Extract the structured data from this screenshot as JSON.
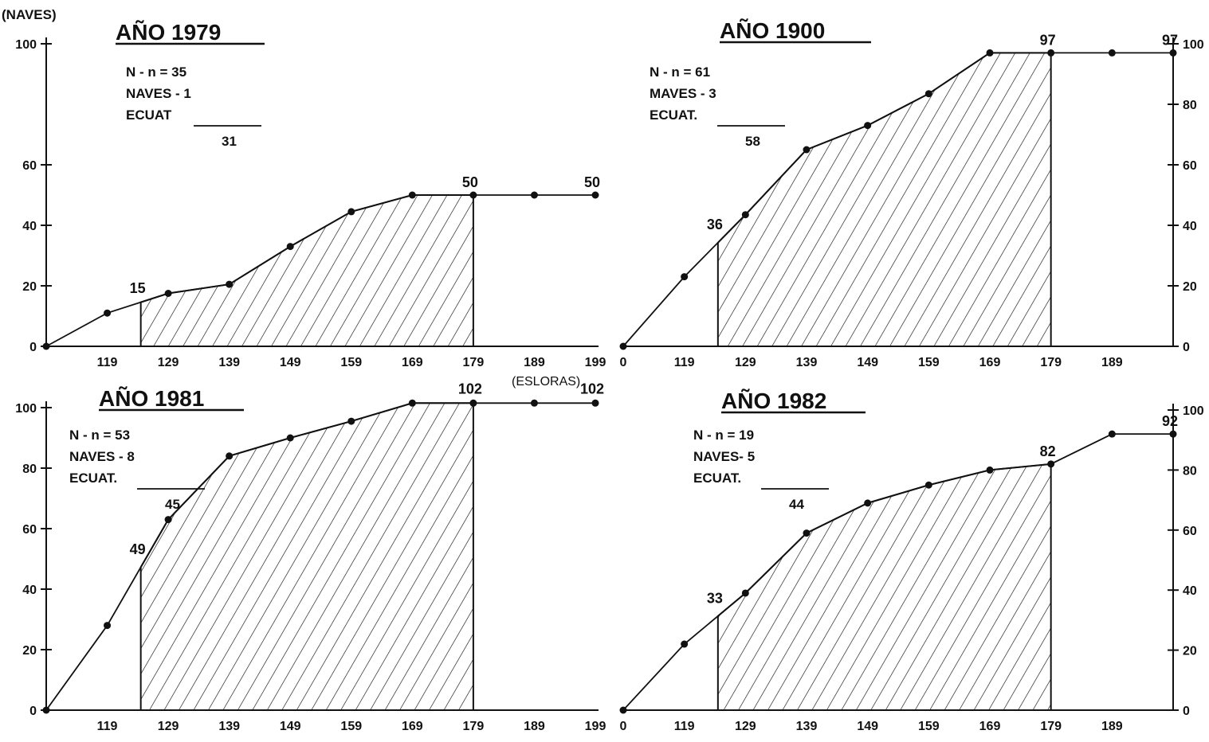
{
  "figure": {
    "y_unit": "(NAVES)",
    "x_unit": "(ESLORAS)",
    "x_ticks": [
      "119",
      "129",
      "139",
      "149",
      "159",
      "169",
      "179",
      "189",
      "199"
    ]
  },
  "chart_data": [
    {
      "type": "line",
      "title": "AÑO 1979",
      "legend_lines": [
        "N - n = 35",
        "NAVES - 1",
        "ECUAT",
        "31"
      ],
      "x_tick_labels": [
        "119",
        "129",
        "139",
        "149",
        "159",
        "169",
        "179",
        "189",
        "199"
      ],
      "y_ticks": [
        0,
        20,
        40,
        60,
        100
      ],
      "y_axis_side": "left",
      "ylim": [
        0,
        100
      ],
      "points": [
        [
          109,
          0
        ],
        [
          119,
          11
        ],
        [
          129,
          17.5
        ],
        [
          139,
          20.5
        ],
        [
          149,
          33
        ],
        [
          159,
          44.5
        ],
        [
          169,
          50
        ],
        [
          179,
          50
        ],
        [
          189,
          50
        ],
        [
          199,
          50
        ]
      ],
      "shaded_from_x": 124.5,
      "shaded_to_x": 179,
      "annotations": [
        {
          "text": "15",
          "x": 124.5,
          "y": 15
        },
        {
          "text": "50",
          "x": 179,
          "y": 50
        },
        {
          "text": "50",
          "x": 199,
          "y": 50
        }
      ]
    },
    {
      "type": "line",
      "title": "AÑO 1900",
      "legend_lines": [
        "N - n = 61",
        "MAVES - 3",
        "ECUAT.",
        "58"
      ],
      "x_tick_labels": [
        "0",
        "119",
        "129",
        "139",
        "149",
        "159",
        "169",
        "179",
        "189"
      ],
      "y_ticks": [
        0,
        20,
        40,
        60,
        80,
        100
      ],
      "y_axis_side": "right",
      "ylim": [
        0,
        100
      ],
      "points": [
        [
          109,
          0
        ],
        [
          119,
          23
        ],
        [
          129,
          43.5
        ],
        [
          139,
          65
        ],
        [
          149,
          73
        ],
        [
          159,
          83.5
        ],
        [
          169,
          97
        ],
        [
          179,
          97
        ],
        [
          189,
          97
        ],
        [
          199,
          97
        ]
      ],
      "shaded_from_x": 124.5,
      "shaded_to_x": 179,
      "annotations": [
        {
          "text": "36",
          "x": 124.5,
          "y": 36
        },
        {
          "text": "97",
          "x": 179,
          "y": 97
        },
        {
          "text": "97",
          "x": 199,
          "y": 97
        }
      ]
    },
    {
      "type": "line",
      "title": "AÑO 1981",
      "legend_lines": [
        "N - n = 53",
        "NAVES - 8",
        "ECUAT.",
        "45"
      ],
      "x_tick_labels": [
        "119",
        "129",
        "139",
        "149",
        "159",
        "169",
        "179",
        "189",
        "199"
      ],
      "y_ticks": [
        0,
        20,
        40,
        60,
        80,
        100
      ],
      "y_axis_side": "left",
      "ylim": [
        0,
        100
      ],
      "points": [
        [
          109,
          0
        ],
        [
          119,
          28
        ],
        [
          129,
          63
        ],
        [
          139,
          84
        ],
        [
          149,
          90
        ],
        [
          159,
          95.5
        ],
        [
          169,
          101.5
        ],
        [
          179,
          101.5
        ],
        [
          189,
          101.5
        ],
        [
          199,
          101.5
        ]
      ],
      "shaded_from_x": 124.5,
      "shaded_to_x": 179,
      "annotations": [
        {
          "text": "49",
          "x": 124.5,
          "y": 49
        },
        {
          "text": "102",
          "x": 179,
          "y": 102
        },
        {
          "text": "102",
          "x": 199,
          "y": 102
        }
      ]
    },
    {
      "type": "line",
      "title": "AÑO 1982",
      "legend_lines": [
        "N - n = 19",
        "NAVES- 5",
        "ECUAT.",
        "44"
      ],
      "x_tick_labels": [
        "0",
        "119",
        "129",
        "139",
        "149",
        "159",
        "169",
        "179",
        "189"
      ],
      "y_ticks": [
        0,
        20,
        40,
        60,
        80,
        100
      ],
      "y_axis_side": "right",
      "ylim": [
        0,
        100
      ],
      "points": [
        [
          109,
          0
        ],
        [
          119,
          22
        ],
        [
          129,
          39
        ],
        [
          139,
          59
        ],
        [
          149,
          69
        ],
        [
          159,
          75
        ],
        [
          169,
          80
        ],
        [
          179,
          82
        ],
        [
          189,
          92
        ],
        [
          199,
          92
        ]
      ],
      "shaded_from_x": 124.5,
      "shaded_to_x": 179,
      "annotations": [
        {
          "text": "33",
          "x": 124.5,
          "y": 33
        },
        {
          "text": "82",
          "x": 179,
          "y": 82
        },
        {
          "text": "92",
          "x": 199,
          "y": 92
        }
      ]
    }
  ]
}
